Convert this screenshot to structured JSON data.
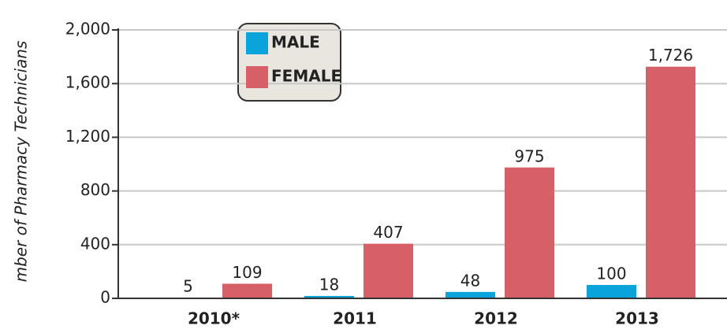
{
  "chart_data": {
    "type": "bar",
    "y_label": "mber of Pharmacy Technicians",
    "categories": [
      "2010*",
      "2011",
      "2012",
      "2013"
    ],
    "series": [
      {
        "name": "MALE",
        "color": "#0aa3dc",
        "values": [
          5,
          18,
          48,
          100
        ]
      },
      {
        "name": "FEMALE",
        "color": "#d75f68",
        "values": [
          109,
          407,
          975,
          1726
        ],
        "value_labels": [
          "109",
          "407",
          "975",
          "1,726"
        ]
      }
    ],
    "ylim": [
      0,
      2000
    ],
    "yticks": [
      0,
      400,
      800,
      {
        "value": 1200,
        "label": "1,200"
      },
      {
        "value": 1600,
        "label": "1,600"
      },
      {
        "value": 2000,
        "label": "2,000"
      }
    ],
    "grid": true
  }
}
